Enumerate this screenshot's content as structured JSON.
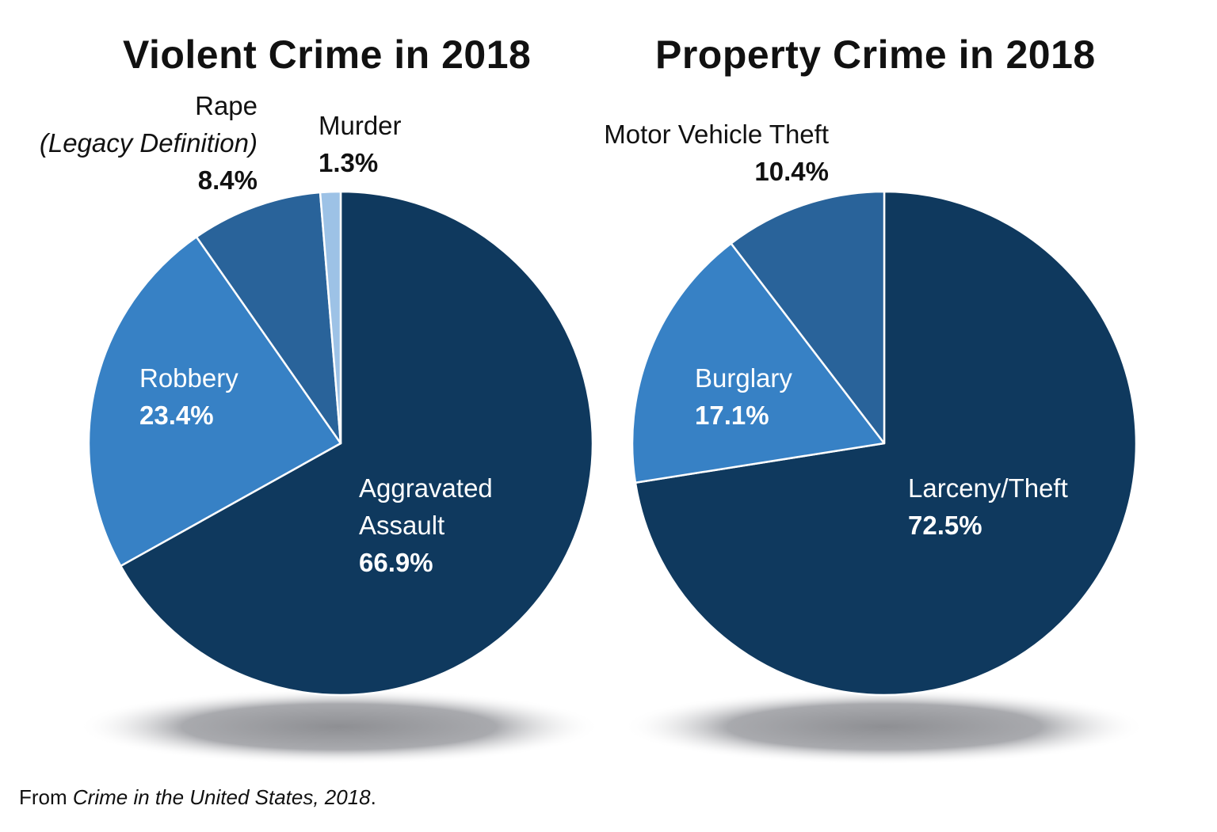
{
  "chart_data": [
    {
      "type": "pie",
      "title": "Violent Crime in 2018",
      "start": "top",
      "direction": "clockwise",
      "slices": [
        {
          "label": "Aggravated Assault",
          "label_lines": [
            "Aggravated",
            "Assault"
          ],
          "value": 66.9,
          "value_label": "66.9%",
          "color": "#0f395e"
        },
        {
          "label": "Robbery",
          "label_lines": [
            "Robbery"
          ],
          "value": 23.4,
          "value_label": "23.4%",
          "color": "#3781c5"
        },
        {
          "label": "Rape (Legacy Definition)",
          "label_lines": [
            "Rape",
            "(Legacy Definition)"
          ],
          "value": 8.4,
          "value_label": "8.4%",
          "color": "#29639a"
        },
        {
          "label": "Murder",
          "label_lines": [
            "Murder"
          ],
          "value": 1.3,
          "value_label": "1.3%",
          "color": "#9dc2e6"
        }
      ]
    },
    {
      "type": "pie",
      "title": "Property Crime in 2018",
      "start": "top",
      "direction": "clockwise",
      "slices": [
        {
          "label": "Larceny/Theft",
          "label_lines": [
            "Larceny/Theft"
          ],
          "value": 72.5,
          "value_label": "72.5%",
          "color": "#0f395e"
        },
        {
          "label": "Burglary",
          "label_lines": [
            "Burglary"
          ],
          "value": 17.1,
          "value_label": "17.1%",
          "color": "#3781c5"
        },
        {
          "label": "Motor Vehicle Theft",
          "label_lines": [
            "Motor Vehicle Theft"
          ],
          "value": 10.4,
          "value_label": "10.4%",
          "color": "#29639a"
        }
      ]
    }
  ],
  "source": {
    "prefix": "From ",
    "title": "Crime in the United States, 2018",
    "suffix": "."
  }
}
